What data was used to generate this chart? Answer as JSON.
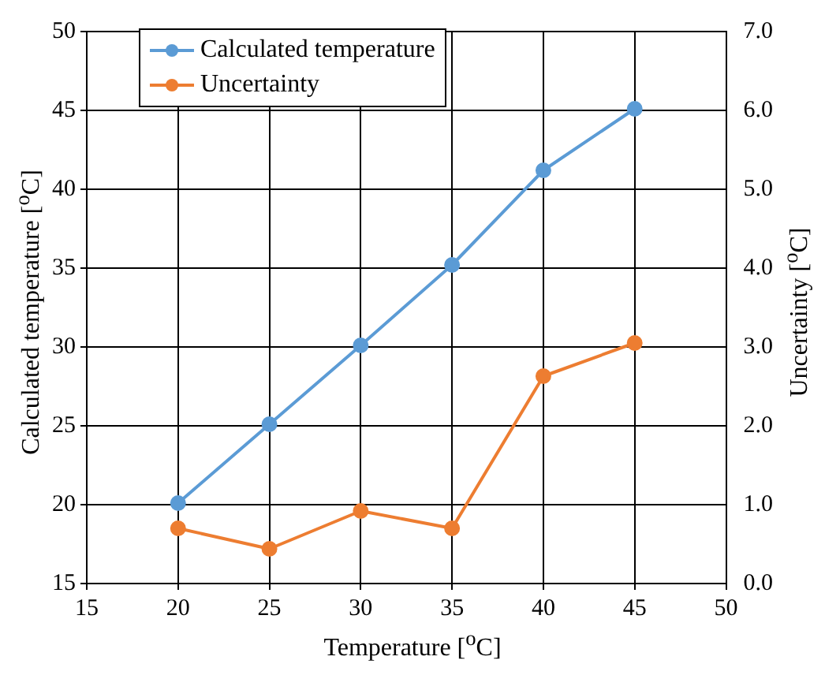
{
  "chart_data": {
    "type": "line",
    "xlabel": "Temperature [$^{o}$C]",
    "ylabel": "Calculated temperature [$^{o}$C]",
    "y2label": "Uncertainty [$^{o}$C]",
    "x": [
      20,
      25,
      30,
      35,
      40,
      45
    ],
    "series": [
      {
        "name": "Calculated temperature",
        "color": "#5b9bd5",
        "values": [
          20.1,
          25.1,
          30.1,
          35.2,
          41.2,
          45.1
        ]
      },
      {
        "name": "Uncertainty",
        "color": "#ed7d31",
        "axis": "y2",
        "values": [
          0.7,
          0.44,
          0.92,
          0.7,
          2.63,
          3.05
        ]
      }
    ],
    "xlim": [
      15,
      50
    ],
    "xticks": [
      15,
      20,
      25,
      30,
      35,
      40,
      45,
      50
    ],
    "ylim": [
      15,
      50
    ],
    "yticks": [
      15,
      20,
      25,
      30,
      35,
      40,
      45,
      50
    ],
    "y2lim": [
      0,
      7
    ],
    "y2ticks": [
      {
        "value": 0,
        "label": "0.0"
      },
      {
        "value": 1,
        "label": "1.0"
      },
      {
        "value": 2,
        "label": "2.0"
      },
      {
        "value": 3,
        "label": "3.0"
      },
      {
        "value": 4,
        "label": "4.0"
      },
      {
        "value": 5,
        "label": "5.0"
      },
      {
        "value": 6,
        "label": "6.0"
      },
      {
        "value": 7,
        "label": "7.0"
      }
    ],
    "grid": true,
    "legend": "top left",
    "marker": "circle",
    "line_style": "solid"
  }
}
